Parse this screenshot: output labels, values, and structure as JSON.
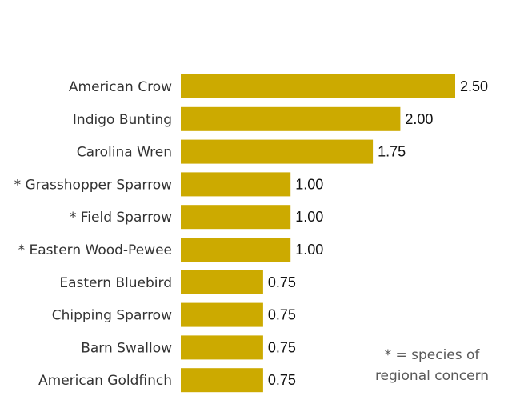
{
  "chart_data": {
    "type": "bar",
    "orientation": "horizontal",
    "categories": [
      "American Crow",
      "Indigo Bunting",
      "Carolina Wren",
      "* Grasshopper Sparrow",
      "* Field Sparrow",
      "* Eastern Wood-Pewee",
      "Eastern Bluebird",
      "Chipping Sparrow",
      "Barn Swallow",
      "American Goldfinch"
    ],
    "values": [
      2.5,
      2.0,
      1.75,
      1.0,
      1.0,
      1.0,
      0.75,
      0.75,
      0.75,
      0.75
    ],
    "value_labels": [
      "2.50",
      "2.00",
      "1.75",
      "1.00",
      "1.00",
      "1.00",
      "0.75",
      "0.75",
      "0.75",
      "0.75"
    ],
    "title": "",
    "xlabel": "",
    "ylabel": "",
    "xlim": [
      0,
      2.5
    ],
    "grid": false,
    "bar_color": "#CCAA00",
    "annotation": {
      "line1": "* = species of",
      "line2": "regional concern"
    }
  }
}
